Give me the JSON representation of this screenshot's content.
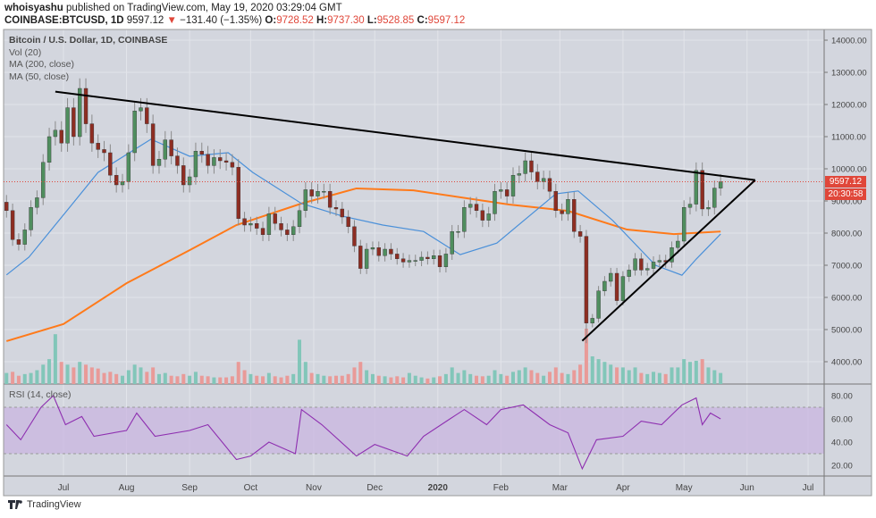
{
  "header": {
    "author": "whoisyashu",
    "published_text": "published on TradingView.com, May 19, 2020 03:29:04 GMT",
    "symbol": "COINBASE:BTCUSD, 1D",
    "last": "9597.12",
    "change": "−131.40 (−1.35%)",
    "change_direction_icon": "triangle-down-icon",
    "o_label": "O:",
    "o": "9728.52",
    "h_label": "H:",
    "h": "9737.30",
    "l_label": "L:",
    "l": "9528.85",
    "c_label": "C:",
    "c": "9597.12"
  },
  "legend": {
    "title": "Bitcoin / U.S. Dollar, 1D, COINBASE",
    "vol": "Vol (20)",
    "ma200": "MA (200, close)",
    "ma50": "MA (50, close)",
    "rsi": "RSI (14, close)"
  },
  "price_badge": "9597.12",
  "countdown_badge": "20:30:58",
  "footer": {
    "brand": "TradingView",
    "logo_icon": "tradingview-logo-icon"
  },
  "colors": {
    "up": "#4f8e5e",
    "down": "#8e2d22",
    "vol_up": "#82c6b9",
    "vol_down": "#e99a98",
    "ma200": "#ff7a1a",
    "ma50": "#4a90d9",
    "rsi": "#8e2fb0",
    "rsi_band": "#c9b6e0",
    "last_price": "#e0473a",
    "trendline": "#000000",
    "background": "#d3d6de"
  },
  "chart_data": {
    "type": "candlestick",
    "price_axis": {
      "ticks": [
        "14000.00",
        "13000.00",
        "12000.00",
        "11000.00",
        "10000.00",
        "9000.00",
        "8000.00",
        "7000.00",
        "6000.00",
        "5000.00",
        "4000.00"
      ],
      "range": [
        3300,
        14400
      ]
    },
    "time_axis": {
      "ticks": [
        "Jul",
        "Aug",
        "Sep",
        "Oct",
        "Nov",
        "Dec",
        "2020",
        "Feb",
        "Mar",
        "Apr",
        "May",
        "Jun",
        "Jul"
      ],
      "tick_dates": [
        "2019-07-01",
        "2019-08-01",
        "2019-09-01",
        "2019-10-01",
        "2019-11-01",
        "2019-12-01",
        "2020-01-01",
        "2020-02-01",
        "2020-03-01",
        "2020-04-01",
        "2020-05-01",
        "2020-06-01",
        "2020-07-01"
      ]
    },
    "grid": true,
    "dates": [
      "2019-06-03",
      "2019-06-06",
      "2019-06-09",
      "2019-06-12",
      "2019-06-15",
      "2019-06-18",
      "2019-06-21",
      "2019-06-24",
      "2019-06-27",
      "2019-06-30",
      "2019-07-03",
      "2019-07-06",
      "2019-07-09",
      "2019-07-12",
      "2019-07-15",
      "2019-07-18",
      "2019-07-21",
      "2019-07-24",
      "2019-07-27",
      "2019-07-30",
      "2019-08-02",
      "2019-08-05",
      "2019-08-08",
      "2019-08-11",
      "2019-08-14",
      "2019-08-17",
      "2019-08-20",
      "2019-08-23",
      "2019-08-26",
      "2019-08-29",
      "2019-09-01",
      "2019-09-04",
      "2019-09-07",
      "2019-09-10",
      "2019-09-13",
      "2019-09-16",
      "2019-09-19",
      "2019-09-22",
      "2019-09-25",
      "2019-09-28",
      "2019-10-01",
      "2019-10-04",
      "2019-10-07",
      "2019-10-10",
      "2019-10-13",
      "2019-10-16",
      "2019-10-19",
      "2019-10-22",
      "2019-10-25",
      "2019-10-28",
      "2019-10-31",
      "2019-11-03",
      "2019-11-06",
      "2019-11-09",
      "2019-11-12",
      "2019-11-15",
      "2019-11-18",
      "2019-11-21",
      "2019-11-24",
      "2019-11-27",
      "2019-11-30",
      "2019-12-03",
      "2019-12-06",
      "2019-12-09",
      "2019-12-12",
      "2019-12-15",
      "2019-12-18",
      "2019-12-21",
      "2019-12-24",
      "2019-12-27",
      "2019-12-30",
      "2020-01-02",
      "2020-01-05",
      "2020-01-08",
      "2020-01-11",
      "2020-01-14",
      "2020-01-17",
      "2020-01-20",
      "2020-01-23",
      "2020-01-26",
      "2020-01-29",
      "2020-02-01",
      "2020-02-04",
      "2020-02-07",
      "2020-02-10",
      "2020-02-13",
      "2020-02-16",
      "2020-02-19",
      "2020-02-22",
      "2020-02-25",
      "2020-02-28",
      "2020-03-02",
      "2020-03-05",
      "2020-03-08",
      "2020-03-11",
      "2020-03-14",
      "2020-03-17",
      "2020-03-20",
      "2020-03-23",
      "2020-03-26",
      "2020-03-29",
      "2020-04-01",
      "2020-04-04",
      "2020-04-07",
      "2020-04-10",
      "2020-04-13",
      "2020-04-16",
      "2020-04-19",
      "2020-04-22",
      "2020-04-25",
      "2020-04-28",
      "2020-05-01",
      "2020-05-04",
      "2020-05-07",
      "2020-05-10",
      "2020-05-13",
      "2020-05-16",
      "2020-05-19"
    ],
    "close": [
      8700,
      7800,
      7650,
      8100,
      8800,
      9100,
      10200,
      11000,
      11200,
      10800,
      11900,
      11000,
      12500,
      11400,
      10800,
      10600,
      10500,
      9800,
      9500,
      9600,
      10500,
      11800,
      11900,
      11400,
      10100,
      10300,
      10900,
      10400,
      10100,
      9500,
      9750,
      10550,
      10450,
      10100,
      10350,
      10250,
      10200,
      10050,
      8450,
      8250,
      8300,
      8150,
      7950,
      8600,
      8300,
      8100,
      7950,
      8200,
      8700,
      9350,
      9150,
      9300,
      9300,
      8800,
      8750,
      8500,
      8200,
      7600,
      6900,
      7500,
      7550,
      7300,
      7500,
      7350,
      7200,
      7100,
      7150,
      7150,
      7250,
      7200,
      7300,
      6950,
      7350,
      8050,
      8050,
      8800,
      8900,
      8700,
      8400,
      8600,
      9300,
      9350,
      9150,
      9800,
      9850,
      10250,
      9900,
      9600,
      9700,
      9300,
      8700,
      8600,
      9050,
      8050,
      7900,
      5200,
      5350,
      6200,
      6500,
      6750,
      5900,
      6650,
      6850,
      7200,
      6850,
      6900,
      7100,
      7150,
      7100,
      7550,
      7750,
      8800,
      8900,
      9950,
      8750,
      8800,
      9400,
      9597.12
    ],
    "volume_relative": [
      20,
      22,
      15,
      18,
      20,
      25,
      35,
      45,
      90,
      40,
      35,
      30,
      40,
      35,
      30,
      28,
      20,
      22,
      18,
      15,
      25,
      35,
      30,
      22,
      30,
      18,
      20,
      15,
      14,
      18,
      15,
      22,
      15,
      14,
      12,
      12,
      12,
      14,
      40,
      25,
      18,
      15,
      14,
      20,
      14,
      12,
      15,
      18,
      80,
      40,
      20,
      18,
      15,
      14,
      15,
      15,
      18,
      30,
      40,
      25,
      18,
      15,
      14,
      12,
      14,
      12,
      20,
      15,
      12,
      10,
      12,
      14,
      18,
      30,
      20,
      25,
      18,
      15,
      14,
      15,
      25,
      18,
      15,
      22,
      25,
      30,
      25,
      20,
      15,
      22,
      30,
      20,
      18,
      25,
      35,
      100,
      50,
      45,
      40,
      35,
      30,
      30,
      25,
      30,
      20,
      18,
      22,
      20,
      18,
      30,
      30,
      45,
      40,
      42,
      45,
      30,
      25,
      20
    ],
    "ma200": {
      "dates": [
        "2019-06-03",
        "2019-07-01",
        "2019-08-01",
        "2019-09-01",
        "2019-09-24",
        "2019-10-26",
        "2019-11-22",
        "2019-12-20",
        "2020-02-05",
        "2020-03-05",
        "2020-04-03",
        "2020-04-26",
        "2020-05-19"
      ],
      "values": [
        4640,
        5170,
        6440,
        7470,
        8250,
        8920,
        9390,
        9330,
        8890,
        8690,
        8110,
        7970,
        8050
      ]
    },
    "ma50": {
      "dates": [
        "2019-06-03",
        "2019-06-14",
        "2019-07-04",
        "2019-07-18",
        "2019-08-13",
        "2019-09-01",
        "2019-09-20",
        "2019-10-02",
        "2019-10-26",
        "2019-11-15",
        "2019-12-05",
        "2019-12-25",
        "2020-01-12",
        "2020-01-30",
        "2020-02-28",
        "2020-03-10",
        "2020-03-27",
        "2020-04-17",
        "2020-04-30",
        "2020-05-07",
        "2020-05-19"
      ],
      "values": [
        6700,
        7250,
        8800,
        9890,
        10920,
        10390,
        10500,
        9890,
        8920,
        8530,
        8250,
        8050,
        7330,
        7690,
        9220,
        9310,
        8390,
        7000,
        6690,
        7190,
        7970
      ]
    },
    "rsi": {
      "axis_ticks": [
        "80.00",
        "60.00",
        "40.00",
        "20.00"
      ],
      "band": [
        30,
        70
      ],
      "dates": [
        "2019-06-03",
        "2019-06-10",
        "2019-06-20",
        "2019-06-26",
        "2019-07-02",
        "2019-07-10",
        "2019-07-16",
        "2019-08-01",
        "2019-08-06",
        "2019-08-15",
        "2019-09-01",
        "2019-09-10",
        "2019-09-24",
        "2019-10-01",
        "2019-10-10",
        "2019-10-23",
        "2019-10-26",
        "2019-11-05",
        "2019-11-22",
        "2019-12-01",
        "2019-12-17",
        "2019-12-25",
        "2020-01-07",
        "2020-01-14",
        "2020-01-25",
        "2020-02-01",
        "2020-02-12",
        "2020-02-25",
        "2020-03-05",
        "2020-03-12",
        "2020-03-19",
        "2020-04-01",
        "2020-04-10",
        "2020-04-20",
        "2020-04-30",
        "2020-05-07",
        "2020-05-10",
        "2020-05-14",
        "2020-05-19"
      ],
      "values": [
        55,
        42,
        70,
        80,
        55,
        62,
        45,
        50,
        65,
        45,
        50,
        55,
        25,
        28,
        40,
        30,
        68,
        55,
        28,
        38,
        28,
        45,
        60,
        68,
        55,
        68,
        72,
        55,
        48,
        17,
        42,
        45,
        58,
        55,
        72,
        78,
        55,
        65,
        60
      ]
    },
    "trendlines": [
      {
        "from": [
          "2019-06-27",
          12400
        ],
        "to": [
          "2020-06-05",
          9650
        ]
      },
      {
        "from": [
          "2020-03-12",
          4650
        ],
        "to": [
          "2020-06-05",
          9650
        ]
      }
    ],
    "last_price": 9597.12
  }
}
